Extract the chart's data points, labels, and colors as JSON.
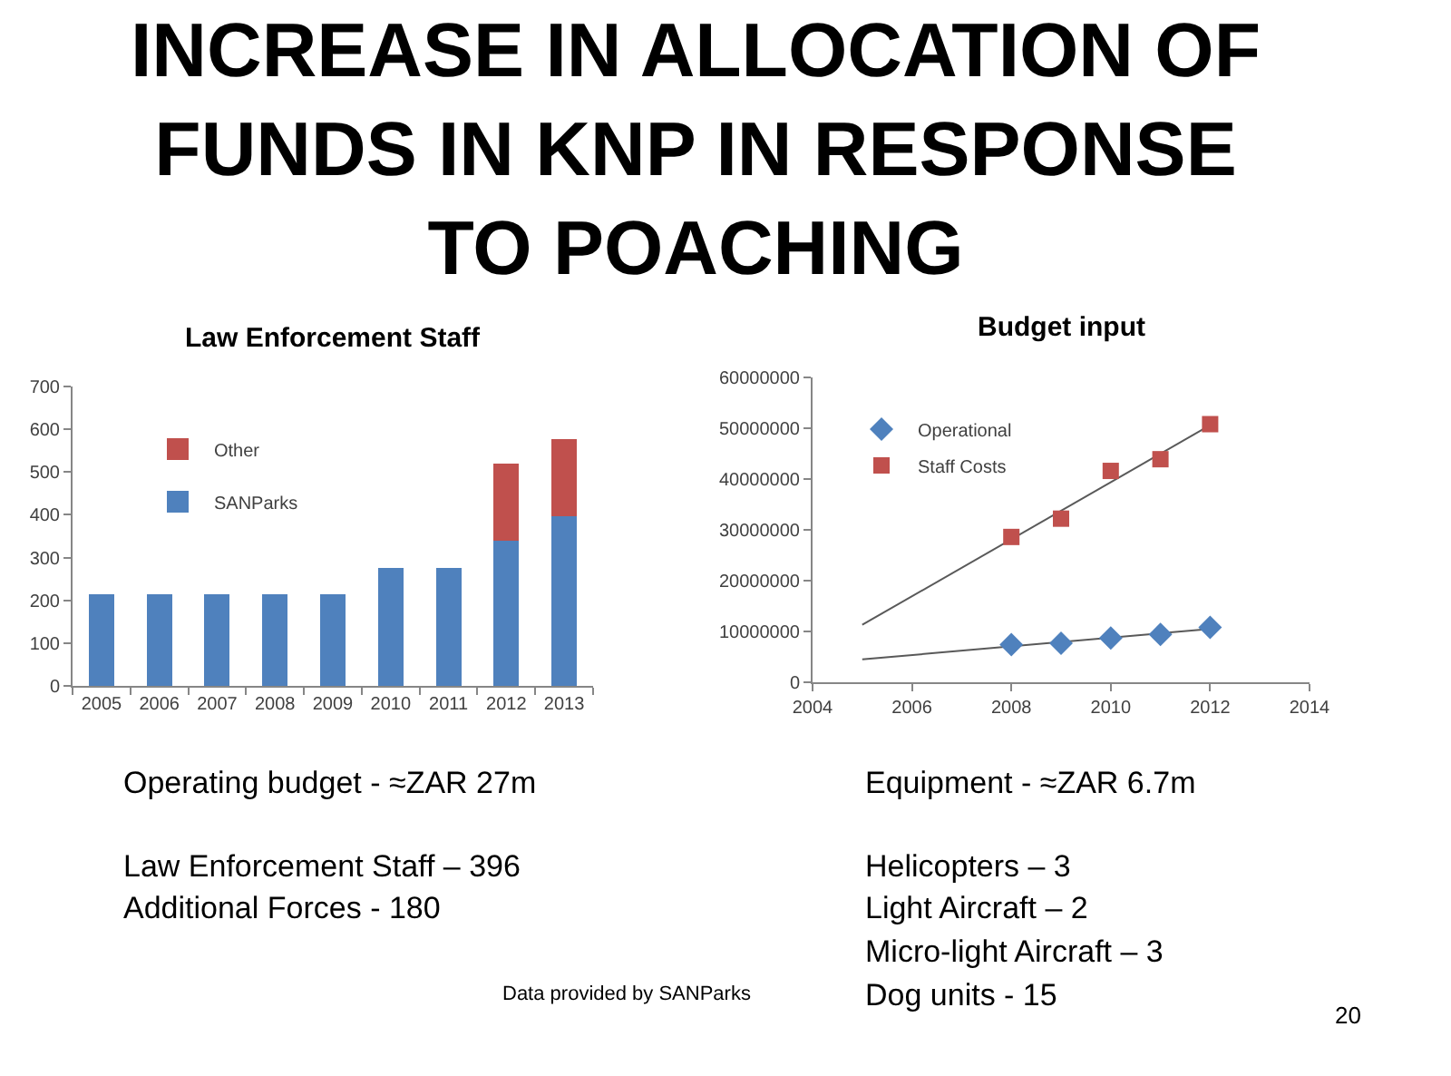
{
  "chart_data": [
    {
      "type": "other",
      "title": "INCREASE IN ALLOCATION OF FUNDS IN KNP IN RESPONSE TO POACHING"
    },
    {
      "type": "bar",
      "title": "Law Enforcement Staff",
      "categories": [
        "2005",
        "2006",
        "2007",
        "2008",
        "2009",
        "2010",
        "2011",
        "2012",
        "2013"
      ],
      "stacked": true,
      "series": [
        {
          "name": "SANParks",
          "color": "#4f81bd",
          "values": [
            215,
            215,
            215,
            215,
            215,
            275,
            275,
            340,
            396
          ]
        },
        {
          "name": "Other",
          "color": "#c0504d",
          "values": [
            null,
            null,
            null,
            null,
            null,
            null,
            null,
            180,
            180
          ]
        }
      ],
      "ylim": [
        0,
        700
      ],
      "yticks": [
        0,
        100,
        200,
        300,
        400,
        500,
        600,
        700
      ],
      "grid": false,
      "legend": "top left"
    },
    {
      "type": "scatter",
      "title": "Budget input",
      "series": [
        {
          "type": "line",
          "color": "#595959",
          "x": [
            2005,
            2012
          ],
          "values": [
            4500000,
            10500000
          ]
        },
        {
          "type": "line",
          "color": "#595959",
          "x": [
            2005,
            2012
          ],
          "values": [
            11300000,
            50600000
          ]
        },
        {
          "name": "Operational",
          "color": "#4f81bd",
          "marker": "diamond",
          "x": [
            2008,
            2009,
            2010,
            2011,
            2012
          ],
          "values": [
            7400000,
            7700000,
            8700000,
            9400000,
            10800000
          ]
        },
        {
          "name": "Staff Costs",
          "color": "#c0504d",
          "marker": "square",
          "x": [
            2008,
            2009,
            2010,
            2011,
            2012
          ],
          "values": [
            28600000,
            32200000,
            41600000,
            43900000,
            50800000
          ]
        }
      ],
      "xlim": [
        2004,
        2014
      ],
      "xticks": [
        2004,
        2006,
        2008,
        2010,
        2012,
        2014
      ],
      "ylim": [
        0,
        60000000
      ],
      "yticks": [
        0,
        10000000,
        20000000,
        30000000,
        40000000,
        50000000,
        60000000
      ],
      "grid": false,
      "legend": "top left"
    },
    {
      "type": "other",
      "annotations": [
        "Operating budget - ≈ZAR 27m",
        "Law Enforcement Staff – 396",
        "Additional Forces - 180",
        "Equipment - ≈ZAR 6.7m",
        "Helicopters – 3",
        "Light Aircraft – 2",
        "Micro-light Aircraft – 3",
        "Dog units - 15",
        "Data provided by SANParks",
        "20"
      ]
    }
  ]
}
